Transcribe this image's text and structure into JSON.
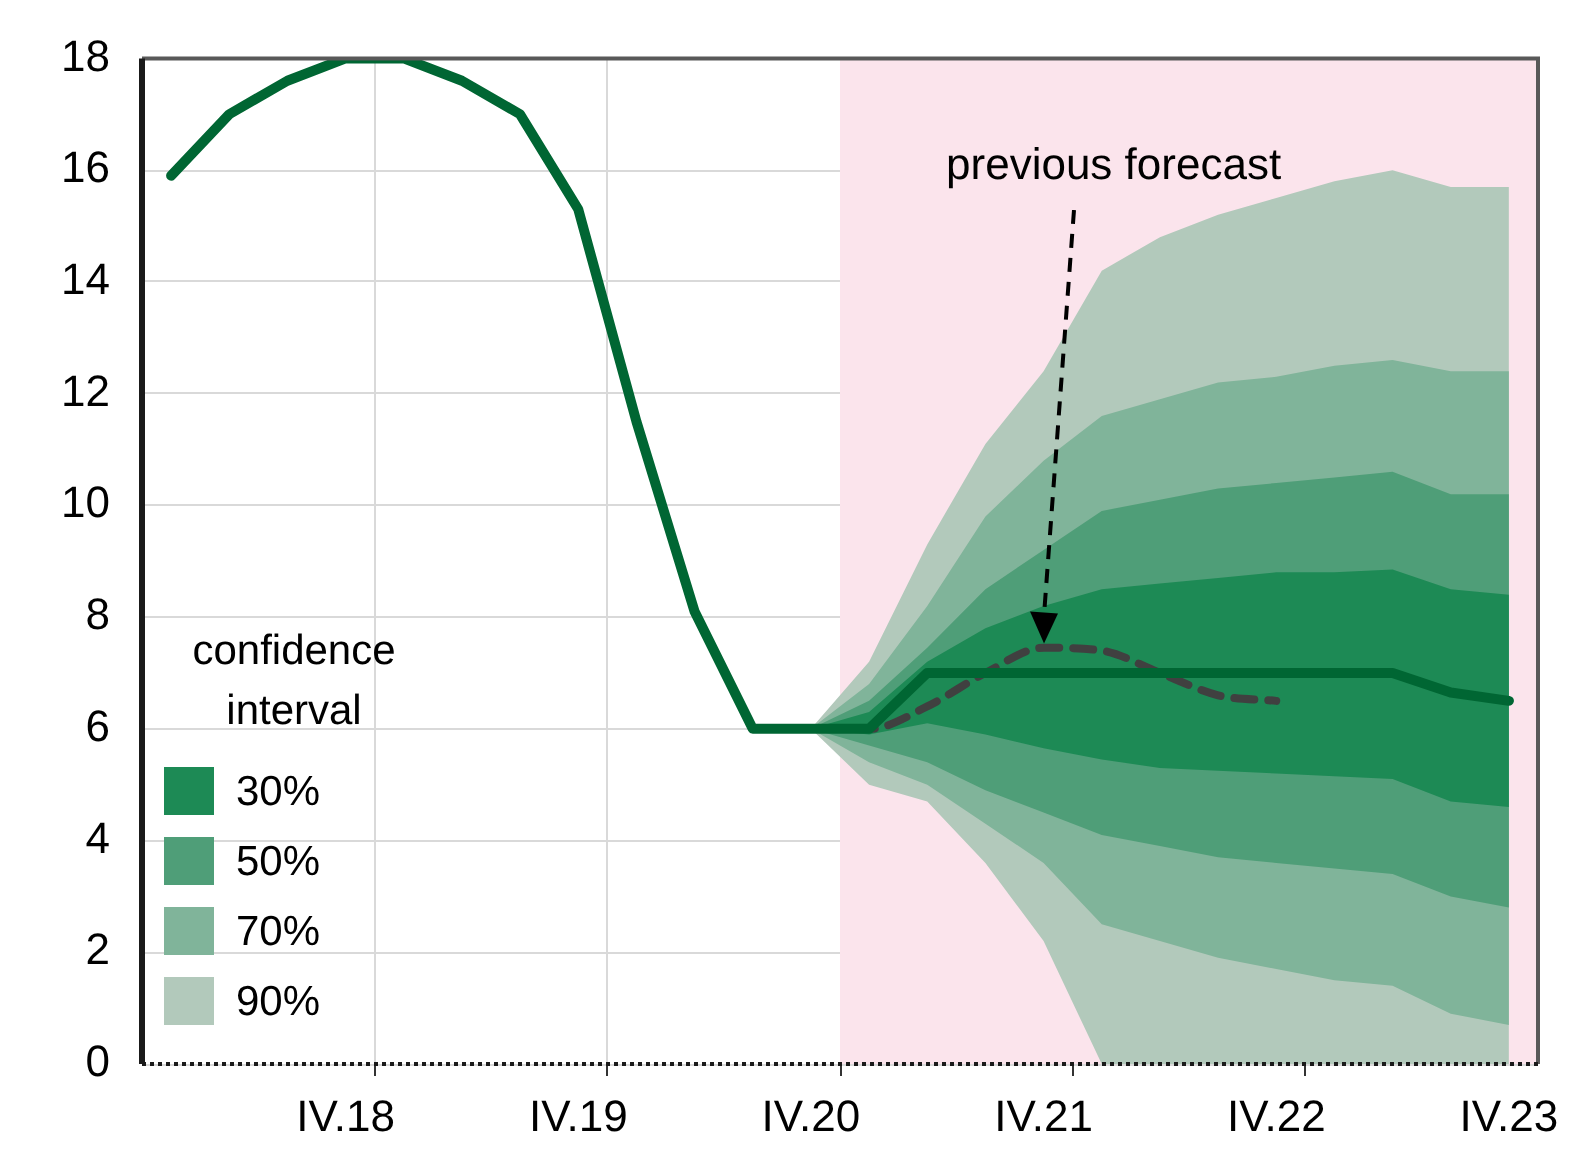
{
  "chart_data": {
    "type": "line",
    "categories": [
      null,
      null,
      null,
      "IV.18",
      null,
      null,
      null,
      "IV.19",
      null,
      null,
      null,
      "IV.20",
      null,
      null,
      null,
      "IV.21",
      null,
      null,
      null,
      "IV.22",
      null,
      null,
      null,
      "IV.23"
    ],
    "series": [
      {
        "color": "#006633",
        "values": [
          15.9,
          17.0,
          17.6,
          18.0,
          18.0,
          17.6,
          17.0,
          15.3,
          11.5,
          8.1,
          6.0,
          6.0,
          6.0,
          7.0,
          7.0,
          7.0,
          7.0,
          7.0,
          7.0,
          7.0,
          7.0,
          7.0,
          6.65,
          6.5
        ]
      },
      {
        "color": "#404040",
        "line_style": "dashed",
        "values": [
          null,
          null,
          null,
          null,
          null,
          null,
          null,
          null,
          null,
          null,
          6.0,
          6.0,
          6.0,
          6.4,
          7.0,
          7.45,
          7.4,
          7.0,
          6.6,
          6.5,
          null,
          null,
          null,
          null
        ]
      },
      {
        "name": "30%",
        "color": "#1d8a55",
        "values": [
          null,
          null,
          null,
          null,
          null,
          null,
          null,
          null,
          null,
          null,
          null,
          null,
          null,
          null,
          null,
          null,
          null,
          null,
          null,
          null,
          null,
          null,
          null,
          null
        ],
        "lower": [
          null,
          null,
          null,
          null,
          null,
          null,
          null,
          null,
          null,
          null,
          null,
          6.0,
          5.9,
          6.1,
          5.9,
          5.65,
          5.45,
          5.3,
          5.25,
          5.2,
          5.15,
          5.1,
          4.7,
          4.6
        ],
        "upper": [
          null,
          null,
          null,
          null,
          null,
          null,
          null,
          null,
          null,
          null,
          null,
          6.0,
          6.3,
          7.2,
          7.8,
          8.2,
          8.5,
          8.6,
          8.7,
          8.8,
          8.8,
          8.85,
          8.5,
          8.4
        ]
      },
      {
        "name": "50%",
        "color": "#4f9e78",
        "values": [
          null,
          null,
          null,
          null,
          null,
          null,
          null,
          null,
          null,
          null,
          null,
          null,
          null,
          null,
          null,
          null,
          null,
          null,
          null,
          null,
          null,
          null,
          null,
          null
        ],
        "lower": [
          null,
          null,
          null,
          null,
          null,
          null,
          null,
          null,
          null,
          null,
          null,
          6.0,
          5.7,
          5.4,
          4.9,
          4.5,
          4.1,
          3.9,
          3.7,
          3.6,
          3.5,
          3.4,
          3.0,
          2.8
        ],
        "upper": [
          null,
          null,
          null,
          null,
          null,
          null,
          null,
          null,
          null,
          null,
          null,
          6.0,
          6.5,
          7.45,
          8.5,
          9.2,
          9.9,
          10.1,
          10.3,
          10.4,
          10.5,
          10.6,
          10.2,
          10.2
        ]
      },
      {
        "name": "70%",
        "color": "#80b49a",
        "values": [
          null,
          null,
          null,
          null,
          null,
          null,
          null,
          null,
          null,
          null,
          null,
          null,
          null,
          null,
          null,
          null,
          null,
          null,
          null,
          null,
          null,
          null,
          null,
          null
        ],
        "lower": [
          null,
          null,
          null,
          null,
          null,
          null,
          null,
          null,
          null,
          null,
          null,
          6.0,
          5.4,
          5.0,
          4.3,
          3.6,
          2.5,
          2.2,
          1.9,
          1.7,
          1.5,
          1.4,
          0.9,
          0.7
        ],
        "upper": [
          null,
          null,
          null,
          null,
          null,
          null,
          null,
          null,
          null,
          null,
          null,
          6.0,
          6.8,
          8.2,
          9.8,
          10.8,
          11.6,
          11.9,
          12.2,
          12.3,
          12.5,
          12.6,
          12.4,
          12.4
        ]
      },
      {
        "name": "90%",
        "color": "#b2c9bb",
        "values": [
          null,
          null,
          null,
          null,
          null,
          null,
          null,
          null,
          null,
          null,
          null,
          null,
          null,
          null,
          null,
          null,
          null,
          null,
          null,
          null,
          null,
          null,
          null,
          null
        ],
        "lower": [
          null,
          null,
          null,
          null,
          null,
          null,
          null,
          null,
          null,
          null,
          null,
          6.0,
          5.0,
          4.7,
          3.6,
          2.2,
          0.0,
          0.0,
          0.0,
          0.0,
          0.0,
          0.0,
          0.0,
          0.0
        ],
        "upper": [
          null,
          null,
          null,
          null,
          null,
          null,
          null,
          null,
          null,
          null,
          null,
          6.0,
          7.2,
          9.3,
          11.1,
          12.4,
          14.2,
          14.8,
          15.2,
          15.5,
          15.8,
          16.0,
          15.7,
          15.7
        ]
      }
    ],
    "ylim": [
      0,
      18
    ],
    "yticks": [
      0,
      2,
      4,
      6,
      8,
      10,
      12,
      14,
      16,
      18
    ],
    "grid": true,
    "legend": "bottom left",
    "legend_title": "confidence interval",
    "bands": [
      {
        "axis": "x",
        "from": "IV.20",
        "to": "IV.23",
        "color": "#fbe4ec"
      }
    ],
    "annotations": [
      "previous forecast"
    ]
  }
}
